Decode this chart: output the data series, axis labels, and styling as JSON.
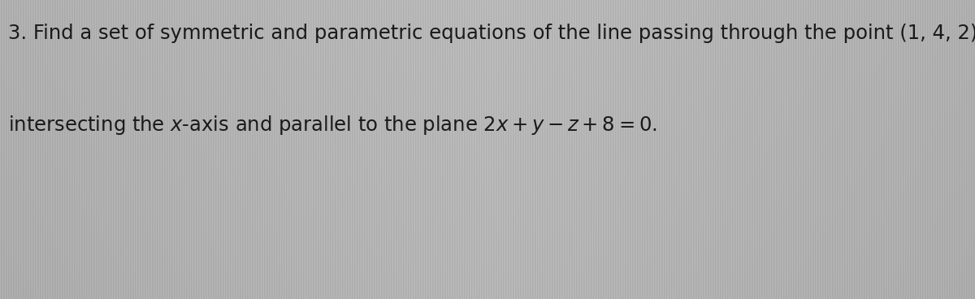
{
  "line1": "3. Find a set of symmetric and parametric equations of the line passing through the point (1, 4, 2)",
  "line2_part1": "intersecting the ",
  "line2_italic": "x",
  "line2_part2": "-axis and parallel to the plane 2",
  "line2_italic2": "x",
  "line2_part3": " + ",
  "line2_italic3": "y",
  "line2_part4": " – ",
  "line2_italic4": "z",
  "line2_part5": " + 8 = 0.",
  "background_color": "#b8b8b8",
  "text_color": "#1a1a1a",
  "font_size": 17.5,
  "fig_width": 12.0,
  "fig_height": 3.68,
  "dpi": 100
}
